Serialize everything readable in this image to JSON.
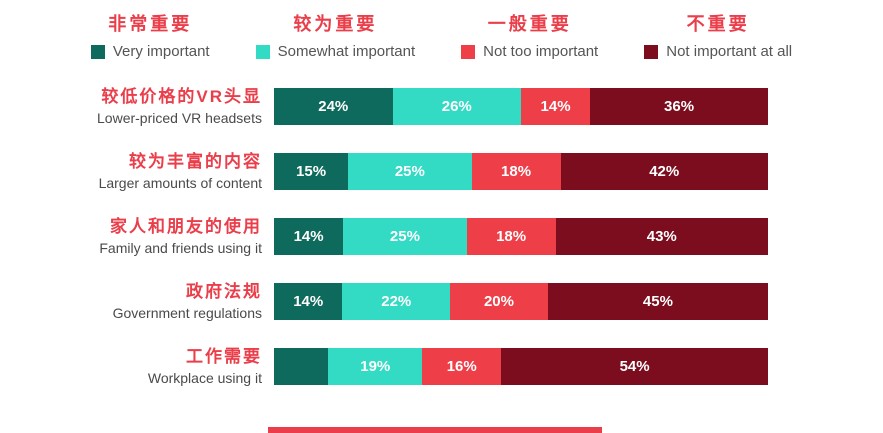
{
  "colors": {
    "very_important": "#0E6A5C",
    "somewhat_important": "#33DBC4",
    "not_too_important": "#EE3E48",
    "not_important_at_all": "#7B0D1E",
    "label_red": "#EA3E4A",
    "label_gray": "#4a4a4a",
    "bar_text": "#ffffff"
  },
  "chart_data": {
    "type": "bar",
    "orientation": "horizontal",
    "stacked": true,
    "x_unit": "percent",
    "xlim": [
      0,
      100
    ],
    "grid": false,
    "legend_position": "top",
    "categories": [
      {
        "zh": "较低价格的VR头显",
        "en": "Lower-priced VR headsets"
      },
      {
        "zh": "较为丰富的内容",
        "en": "Larger amounts of content"
      },
      {
        "zh": "家人和朋友的使用",
        "en": "Family and friends using it"
      },
      {
        "zh": "政府法规",
        "en": "Government regulations"
      },
      {
        "zh": "工作需要",
        "en": "Workplace using it"
      }
    ],
    "series": [
      {
        "name_zh": "非常重要",
        "name_en": "Very important",
        "color": "#0E6A5C",
        "values": [
          24,
          15,
          14,
          14,
          11
        ],
        "value_labels": [
          "24%",
          "15%",
          "14%",
          "14%",
          ""
        ]
      },
      {
        "name_zh": "较为重要",
        "name_en": "Somewhat important",
        "color": "#33DBC4",
        "values": [
          26,
          25,
          25,
          22,
          19
        ],
        "value_labels": [
          "26%",
          "25%",
          "25%",
          "22%",
          "19%"
        ]
      },
      {
        "name_zh": "一般重要",
        "name_en": "Not too important",
        "color": "#EE3E48",
        "values": [
          14,
          18,
          18,
          20,
          16
        ],
        "value_labels": [
          "14%",
          "18%",
          "18%",
          "20%",
          "16%"
        ]
      },
      {
        "name_zh": "不重要",
        "name_en": "Not important at all",
        "color": "#7B0D1E",
        "values": [
          36,
          42,
          43,
          45,
          54
        ],
        "value_labels": [
          "36%",
          "42%",
          "43%",
          "45%",
          "54%"
        ]
      }
    ]
  }
}
